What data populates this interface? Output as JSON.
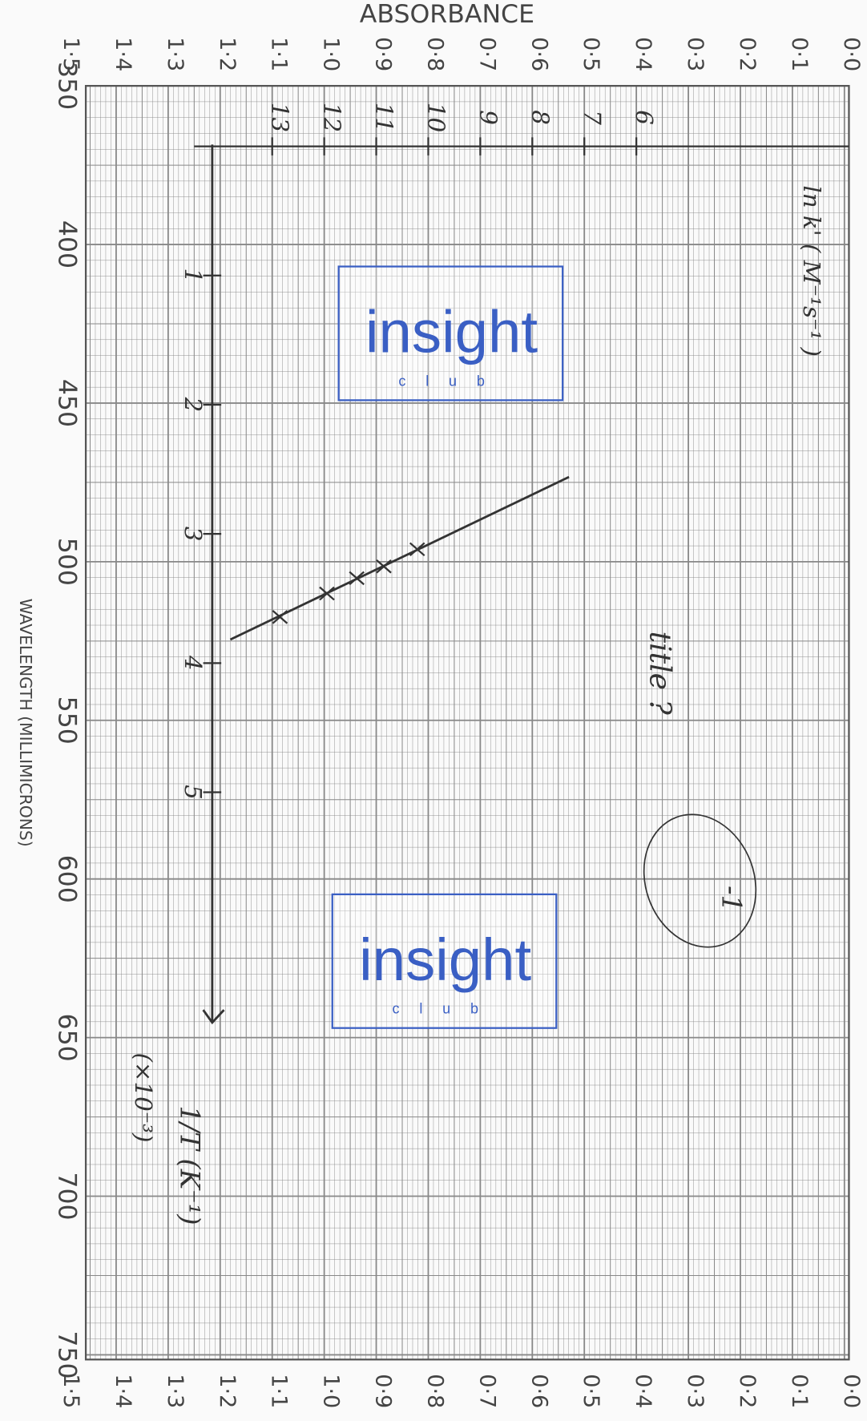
{
  "printed": {
    "title": "ABSORBANCE",
    "x_axis_label": "WAVELENGTH (MILLIMICRONS)",
    "absorbance_ticks": [
      "0·0",
      "0·1",
      "0·2",
      "0·3",
      "0·4",
      "0·5",
      "0·6",
      "0·7",
      "0·8",
      "0·9",
      "1·0",
      "1·1",
      "1·2",
      "1·3",
      "1·4",
      "1·5"
    ],
    "wavelength_ticks": [
      "350",
      "400",
      "450",
      "500",
      "550",
      "600",
      "650",
      "700",
      "750"
    ]
  },
  "handwritten": {
    "y_axis_label": "ln k' ( M⁻¹s⁻¹ )",
    "x_axis_label": "1/T (K⁻¹)",
    "x_multiplier": "(×10⁻³)",
    "note": "title ?",
    "circled_mark": "-1",
    "y_ticks": [
      "6",
      "7",
      "8",
      "9",
      "10",
      "11",
      "12",
      "13"
    ],
    "x_ticks": [
      "1",
      "2",
      "3",
      "4",
      "5"
    ]
  },
  "watermarks": [
    {
      "brand": "insight",
      "sub": "club"
    },
    {
      "brand": "insight",
      "sub": "club"
    }
  ]
}
